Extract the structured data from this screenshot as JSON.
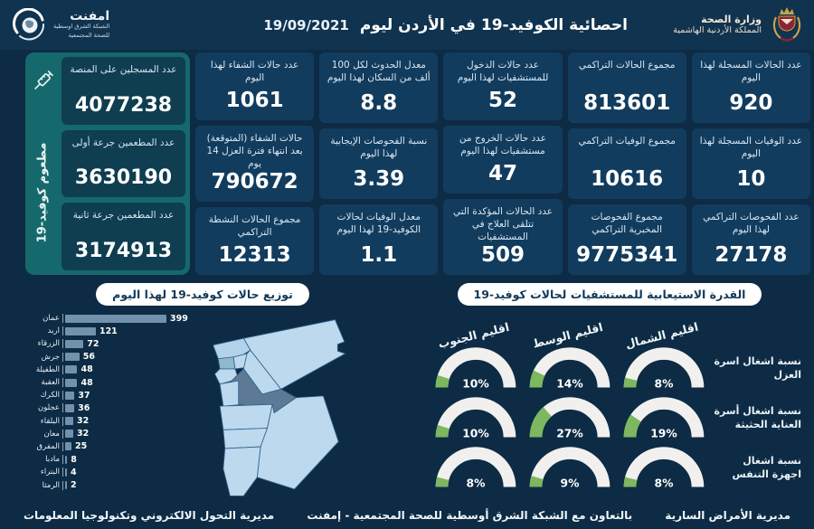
{
  "header": {
    "title": "احصائية الكوفيد-19 في الأردن ليوم",
    "date": "19/09/2021",
    "ministry": {
      "line1": "وزارة الصحة",
      "line2": "المملكة الأردنية الهاشمية"
    },
    "emphnet": {
      "name": "امفنت",
      "sub1": "الشبكة الشرق اوسطية",
      "sub2": "للصحة المجتمعية"
    }
  },
  "stats": {
    "columns": [
      [
        {
          "label": "عدد الحالات المسجلة لهذا اليوم",
          "value": "920"
        },
        {
          "label": "عدد الوفيات المسجلة لهذا اليوم",
          "value": "10"
        },
        {
          "label": "عدد الفحوصات التراكمي لهذا اليوم",
          "value": "27178"
        }
      ],
      [
        {
          "label": "مجموع الحالات التراكمي",
          "value": "813601"
        },
        {
          "label": "مجموع الوفيات التراكمي",
          "value": "10616"
        },
        {
          "label": "مجموع الفحوصات المخبرية التراكمي",
          "value": "9775341"
        }
      ],
      [
        {
          "label": "عدد حالات الدخول للمستشفيات لهذا اليوم",
          "value": "52"
        },
        {
          "label": "عدد حالات الخروج من مستشفيات لهذا اليوم",
          "value": "47"
        },
        {
          "label": "عدد الحالات المؤكدة التي تتلقى العلاج في المستشفيات",
          "value": "509"
        }
      ],
      [
        {
          "label": "معدل الحدوث لكل 100 ألف من السكان لهذا اليوم",
          "value": "8.8"
        },
        {
          "label": "نسبة الفحوصات الإيجابية لهذا اليوم",
          "value": "3.39"
        },
        {
          "label": "معدل الوفيات لحالات الكوفيد-19 لهذا اليوم",
          "value": "1.1"
        }
      ],
      [
        {
          "label": "عدد حالات الشفاء لهذا اليوم",
          "value": "1061"
        },
        {
          "label": "حالات الشفاء (المتوقعة) بعد انتهاء فترة العزل 14 يوم",
          "value": "790672"
        },
        {
          "label": "مجموع الحالات النشطة التراكمي",
          "value": "12313"
        }
      ]
    ]
  },
  "vaccine": {
    "side_label": "مطعوم كوفيد-19",
    "cards": [
      {
        "label": "عدد المسجلين على المنصة",
        "value": "4077238"
      },
      {
        "label": "عدد المطعمين جرعة أولى",
        "value": "3630190"
      },
      {
        "label": "عدد المطعمين جرعة ثانية",
        "value": "3174913"
      }
    ]
  },
  "chart_data": [
    {
      "type": "bar",
      "title": "توزيع حالات كوفيد-19 لهذا اليوم",
      "orientation": "horizontal",
      "categories": [
        "عمان",
        "اربد",
        "الزرقاء",
        "جرش",
        "الطفيلة",
        "العقبة",
        "الكرك",
        "عجلون",
        "البلقاء",
        "معان",
        "المفرق",
        "مادبا",
        "البتراء",
        "الرمثا"
      ],
      "values": [
        399,
        121,
        72,
        56,
        48,
        48,
        37,
        36,
        32,
        32,
        25,
        8,
        4,
        2
      ],
      "xlim": [
        0,
        399
      ],
      "bar_color": "#7191ad"
    },
    {
      "type": "gauge-grid",
      "title": "القدرة الاستيعابية للمستشفيات لحالات كوفيد-19",
      "columns": [
        "اقليم الجنوب",
        "اقليم الوسط",
        "اقليم الشمال"
      ],
      "rows": [
        {
          "label": "نسبة اشغال اسرة العزل",
          "values": [
            10,
            14,
            8
          ]
        },
        {
          "label": "نسبة اشغال أسرة العناية الحثيثة",
          "values": [
            10,
            27,
            19
          ]
        },
        {
          "label": "نسبة اشغال اجهزة التنفس",
          "values": [
            8,
            9,
            8
          ]
        }
      ],
      "unit": "%",
      "fill_color": "#7db75f",
      "track_color": "#f1f0ee"
    }
  ],
  "footer": {
    "right": "مديرية الأمراض السارية",
    "center": "بالتعاون مع الشبكة الشرق أوسطية للصحة المجتمعية - إمفنت",
    "left": "مديرية التحول الالكتروني وتكنولوجيا المعلومات"
  },
  "colors": {
    "background": "#0d2b44",
    "card": "#123c5d",
    "vaccine_panel": "#15696d",
    "vaccine_card": "#0e3e50",
    "bar": "#7191ad",
    "gauge_green": "#7db75f",
    "map_light": "#bcd9ee",
    "map_amman": "#5c7a96",
    "map_ajloun": "#8fb9cf"
  }
}
